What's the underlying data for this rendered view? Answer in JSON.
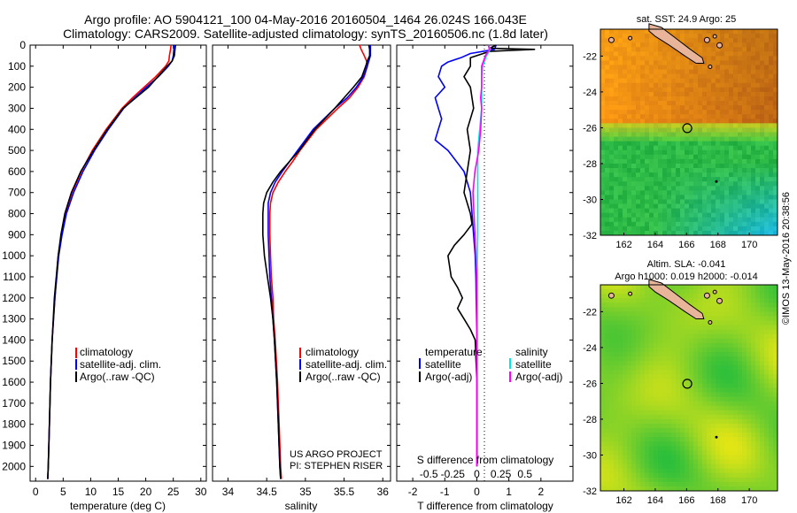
{
  "header": {
    "line1": "Argo profile: AO 5904121_100 04-May-2016 20160504_1464 26.024S 166.043E",
    "line2": "Climatology: CARS2009. Satellite-adjusted climatology: synTS_20160506.nc (1.8d later)"
  },
  "colors": {
    "climatology": "#ff0000",
    "satellite": "#0000ff",
    "argo": "#000000",
    "sal_satellite": "#00e5e5",
    "sal_argo": "#ff00ff"
  },
  "chart_data": [
    {
      "type": "line",
      "panel": "temperature",
      "xlabel": "temperature (deg C)",
      "xlim": [
        -1,
        31
      ],
      "xticks": [
        0,
        5,
        10,
        15,
        20,
        25,
        30
      ],
      "ylim": [
        0,
        2070
      ],
      "yticks": [
        0,
        100,
        200,
        300,
        400,
        500,
        600,
        700,
        800,
        900,
        1000,
        1100,
        1200,
        1300,
        1400,
        1500,
        1600,
        1700,
        1800,
        1900,
        2000
      ],
      "depth": [
        0,
        20,
        50,
        75,
        100,
        150,
        200,
        250,
        300,
        400,
        500,
        600,
        700,
        800,
        900,
        1000,
        1200,
        1400,
        1600,
        1800,
        2000,
        2060
      ],
      "series": [
        {
          "name": "climatology",
          "color_key": "climatology",
          "values": [
            24.6,
            24.5,
            24.3,
            24.2,
            23.6,
            21.8,
            19.7,
            17.6,
            15.7,
            12.8,
            10.3,
            8.3,
            6.6,
            5.4,
            4.7,
            4.1,
            3.5,
            3.0,
            2.7,
            2.5,
            2.3,
            2.2
          ]
        },
        {
          "name": "satellite-adj. clim.",
          "color_key": "satellite",
          "values": [
            25.2,
            25.1,
            25.0,
            24.8,
            24.1,
            22.3,
            20.1,
            18.0,
            16.0,
            13.2,
            10.7,
            8.6,
            6.9,
            5.6,
            4.8,
            4.2,
            3.5,
            3.0,
            2.7,
            2.5,
            2.3,
            2.2
          ]
        },
        {
          "name": "Argo(..raw -QC)",
          "color_key": "argo",
          "values": [
            25.4,
            25.3,
            25.2,
            24.8,
            23.9,
            22.2,
            20.5,
            18.2,
            15.9,
            13.0,
            10.5,
            8.2,
            6.5,
            5.3,
            4.6,
            4.1,
            3.4,
            3.0,
            2.7,
            2.5,
            2.3,
            2.2
          ]
        }
      ]
    },
    {
      "type": "line",
      "panel": "salinity",
      "xlabel": "salinity",
      "xlim": [
        33.8,
        36.1
      ],
      "xticks": [
        34,
        34.5,
        35,
        35.5,
        36
      ],
      "ylim": [
        0,
        2070
      ],
      "depth": [
        0,
        20,
        50,
        75,
        100,
        150,
        200,
        250,
        300,
        400,
        500,
        550,
        600,
        650,
        700,
        750,
        800,
        900,
        1000,
        1100,
        1200,
        1300,
        1400,
        1600,
        1800,
        2000,
        2060
      ],
      "series": [
        {
          "name": "climatology",
          "color_key": "climatology",
          "values": [
            35.7,
            35.72,
            35.76,
            35.79,
            35.8,
            35.76,
            35.68,
            35.57,
            35.42,
            35.14,
            34.93,
            34.84,
            34.74,
            34.65,
            34.58,
            34.55,
            34.54,
            34.54,
            34.55,
            34.56,
            34.58,
            34.59,
            34.61,
            34.64,
            34.66,
            34.68,
            34.69
          ]
        },
        {
          "name": "satellite-adj. clim.",
          "color_key": "satellite",
          "values": [
            35.84,
            35.84,
            35.84,
            35.82,
            35.8,
            35.75,
            35.66,
            35.54,
            35.38,
            35.1,
            34.9,
            34.8,
            34.7,
            34.61,
            34.55,
            34.52,
            34.52,
            34.52,
            34.53,
            34.54,
            34.56,
            34.58,
            34.6,
            34.63,
            34.65,
            34.67,
            34.68
          ]
        },
        {
          "name": "Argo(..raw -QC)",
          "color_key": "argo",
          "values": [
            35.82,
            35.83,
            35.83,
            35.8,
            35.78,
            35.73,
            35.62,
            35.5,
            35.38,
            35.12,
            34.92,
            34.8,
            34.68,
            34.58,
            34.5,
            34.46,
            34.45,
            34.45,
            34.47,
            34.51,
            34.55,
            34.58,
            34.6,
            34.63,
            34.65,
            34.67,
            34.68
          ]
        }
      ]
    },
    {
      "type": "line",
      "panel": "difference",
      "xlabel": "T difference from climatology",
      "xlabel2": "S difference from climatology",
      "xlim": [
        -2.5,
        3
      ],
      "xticks": [
        -2,
        -1,
        0,
        1,
        2
      ],
      "sticks": [
        -0.5,
        -0.25,
        0,
        0.25,
        0.5
      ],
      "sticklabels": [
        "-0.5",
        "-0.25",
        "0",
        "0.25",
        "0.5"
      ],
      "ylim": [
        0,
        2070
      ],
      "series": [
        {
          "name": "T satellite",
          "color_key": "satellite",
          "depth": [
            0,
            20,
            40,
            60,
            80,
            100,
            150,
            200,
            250,
            300,
            350,
            400,
            450,
            500,
            600,
            700,
            800,
            900,
            1000,
            1100,
            1200,
            1300,
            1400,
            1600,
            1800,
            2000
          ],
          "values": [
            0.6,
            0.55,
            -0.2,
            -0.5,
            -0.9,
            -1.1,
            -1.2,
            -1.0,
            -1.3,
            -1.2,
            -1.1,
            -1.2,
            -1.3,
            -0.9,
            -0.4,
            -0.2,
            -0.15,
            -0.1,
            -0.05,
            -0.03,
            -0.02,
            -0.01,
            0,
            0,
            0,
            0
          ]
        },
        {
          "name": "T Argo(-adj)",
          "color_key": "argo",
          "depth": [
            0,
            15,
            20,
            30,
            40,
            60,
            100,
            150,
            200,
            300,
            400,
            500,
            600,
            700,
            800,
            850,
            900,
            950,
            1000,
            1050,
            1100,
            1150,
            1200,
            1250,
            1300,
            1350,
            1400,
            1600,
            1800,
            2000
          ],
          "values": [
            0.6,
            0.4,
            1.8,
            0.4,
            0.2,
            -0.2,
            -0.2,
            -0.4,
            -0.2,
            -0.1,
            -0.3,
            -0.2,
            -0.3,
            -0.4,
            -0.2,
            -0.15,
            -0.4,
            -0.7,
            -0.9,
            -0.85,
            -0.8,
            -0.6,
            -0.45,
            -0.6,
            -0.4,
            -0.2,
            -0.05,
            0,
            0,
            0
          ]
        },
        {
          "name": "S satellite",
          "color_key": "sal_satellite",
          "depth": [
            0,
            20,
            50,
            100,
            150,
            200,
            300,
            400,
            500,
            600,
            700,
            800,
            900,
            1000,
            1100,
            1200,
            1300,
            1400,
            1600,
            1800,
            2000
          ],
          "values": [
            0.12,
            0.14,
            0.1,
            0.06,
            0.05,
            0.05,
            0.05,
            0.03,
            0.01,
            0.01,
            0.01,
            0.01,
            0.01,
            0.005,
            0,
            0,
            0,
            0,
            0,
            0,
            0
          ]
        },
        {
          "name": "S Argo(-adj)",
          "color_key": "sal_argo",
          "depth": [
            0,
            20,
            50,
            100,
            150,
            200,
            250,
            300,
            400,
            500,
            600,
            700,
            800,
            900,
            1000,
            1100,
            1200,
            1300,
            1400,
            1600,
            1800,
            2000
          ],
          "values": [
            0.12,
            0.13,
            0.09,
            0.05,
            0.05,
            0.05,
            0.04,
            0.05,
            0.04,
            0.02,
            -0.02,
            -0.04,
            -0.03,
            -0.02,
            -0.01,
            0,
            0,
            0,
            0,
            0,
            0,
            0
          ]
        }
      ],
      "legend_temperature_title": "temperature",
      "legend_salinity_title": "salinity",
      "legend_satellite": "satellite",
      "legend_argo": "Argo(-adj)"
    },
    {
      "type": "heatmap",
      "panel": "sst_map",
      "title": "sat. SST: 24.9 Argo: 25",
      "xlim": [
        160.5,
        171.8
      ],
      "ylim": [
        -32,
        -20.5
      ],
      "xticks": [
        162,
        164,
        166,
        168,
        170
      ],
      "yticks": [
        -22,
        -24,
        -26,
        -28,
        -30,
        -32
      ],
      "argo_position": {
        "lon": 166.043,
        "lat": -26.024
      }
    },
    {
      "type": "heatmap",
      "panel": "sla_map",
      "title1": "Altim. SLA: -0.041",
      "title2": "Argo h1000: 0.019 h2000: -0.014",
      "xlim": [
        160.5,
        171.8
      ],
      "ylim": [
        -32,
        -20.5
      ],
      "xticks": [
        162,
        164,
        166,
        168,
        170
      ],
      "yticks": [
        -22,
        -24,
        -26,
        -28,
        -30,
        -32
      ],
      "argo_position": {
        "lon": 166.043,
        "lat": -26.024
      }
    }
  ],
  "legend": {
    "climatology": "climatology",
    "satellite": "satellite-adj. clim.",
    "argo": "Argo(..raw -QC)"
  },
  "credit": {
    "line1": "US ARGO PROJECT",
    "line2": "PI: STEPHEN RISER"
  },
  "timestamp": "©IMOS 13-May-2016 20:38:56"
}
